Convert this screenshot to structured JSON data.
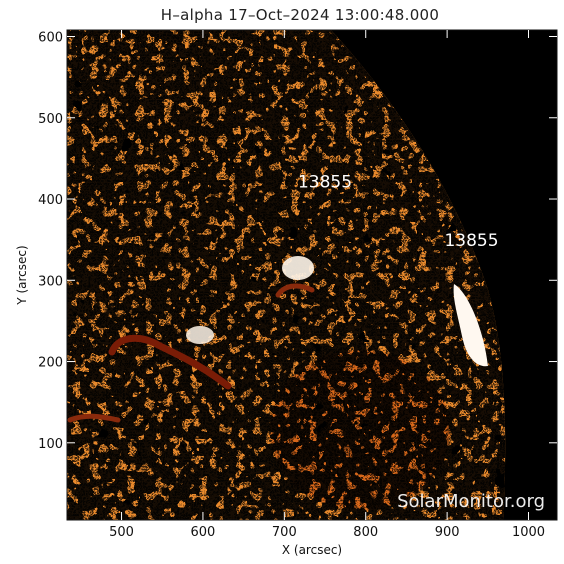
{
  "title": "H–alpha 17–Oct–2024 13:00:48.000",
  "x_axis": {
    "label": "X (arcsec)",
    "range": [
      433,
      1035
    ],
    "ticks": [
      {
        "value": 500,
        "label": "500"
      },
      {
        "value": 600,
        "label": "600"
      },
      {
        "value": 700,
        "label": "700"
      },
      {
        "value": 800,
        "label": "800"
      },
      {
        "value": 900,
        "label": "900"
      },
      {
        "value": 1000,
        "label": "1000"
      }
    ]
  },
  "y_axis": {
    "label": "Y (arcsec)",
    "range": [
      5,
      608
    ],
    "ticks": [
      {
        "value": 100,
        "label": "100"
      },
      {
        "value": 200,
        "label": "200"
      },
      {
        "value": 300,
        "label": "300"
      },
      {
        "value": 400,
        "label": "400"
      },
      {
        "value": 500,
        "label": "500"
      },
      {
        "value": 600,
        "label": "600"
      }
    ]
  },
  "annotations": [
    {
      "text": "13855",
      "x": 750,
      "y": 414
    },
    {
      "text": "13855",
      "x": 930,
      "y": 342
    }
  ],
  "watermark": "SolarMonitor.org",
  "colors": {
    "background": "#000000",
    "disk_base": "#e8892c",
    "bright": "#fff3e4",
    "dark": "#140400",
    "filament": "#7a1c06"
  }
}
